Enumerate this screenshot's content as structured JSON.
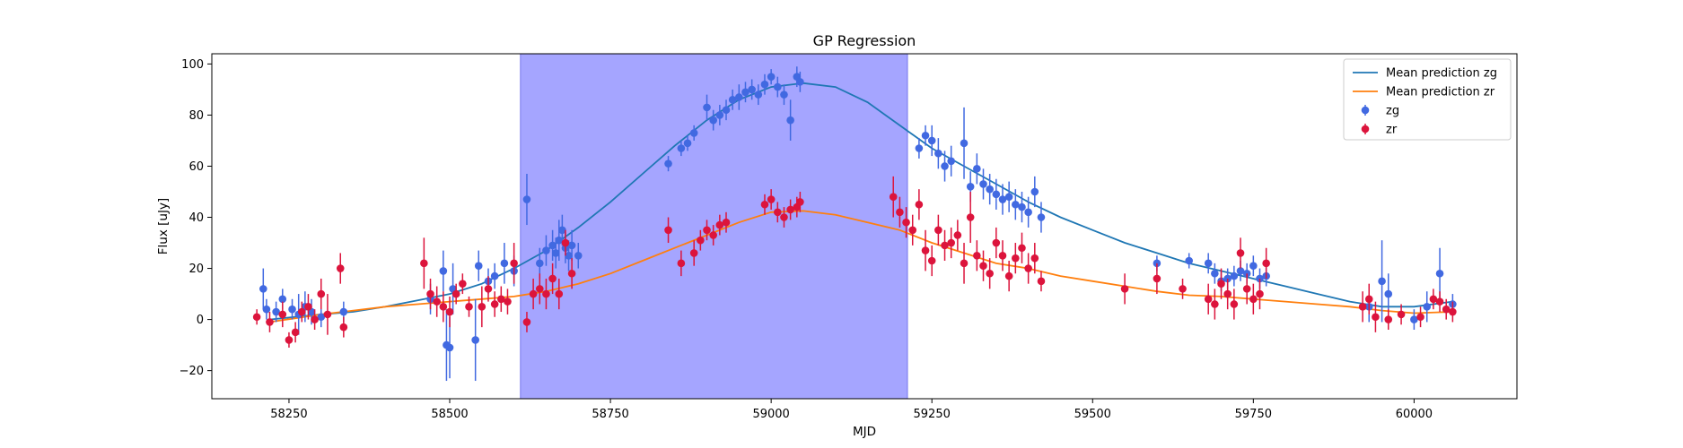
{
  "chart_data": {
    "type": "scatter",
    "title": "GP Regression",
    "xlabel": "MJD",
    "ylabel": "Flux [uJy]",
    "xlim": [
      58130,
      60160
    ],
    "ylim": [
      -31,
      104
    ],
    "xticks": [
      58250,
      58500,
      58750,
      59000,
      59250,
      59500,
      59750,
      60000
    ],
    "yticks": [
      -20,
      0,
      20,
      40,
      60,
      80,
      100
    ],
    "grid": false,
    "legend": "top-right",
    "shaded_region": {
      "x_start": 58610,
      "x_end": 59212,
      "color": "#a5a5ff"
    },
    "colors": {
      "mean_zg": "#1f77b4",
      "mean_zr": "#ff7f0e",
      "zg": "#4169e1",
      "zr": "#dc143c"
    },
    "series": [
      {
        "name": "Mean prediction zg",
        "kind": "line",
        "x": [
          58220,
          58260,
          58300,
          58350,
          58400,
          58450,
          58500,
          58550,
          58600,
          58650,
          58700,
          58750,
          58800,
          58850,
          58900,
          58950,
          59000,
          59050,
          59100,
          59150,
          59200,
          59250,
          59300,
          59350,
          59400,
          59450,
          59500,
          59550,
          59600,
          59650,
          59700,
          59750,
          59800,
          59850,
          59900,
          59950,
          60000,
          60060
        ],
        "y": [
          0,
          1,
          2,
          3,
          5,
          7.5,
          10,
          14,
          20,
          27,
          36,
          46,
          57,
          68,
          78,
          86,
          91,
          92.5,
          91,
          85,
          76,
          67,
          60,
          53,
          46,
          40,
          35,
          30,
          26,
          22,
          19,
          16,
          13,
          10,
          7,
          5,
          5,
          7
        ]
      },
      {
        "name": "Mean prediction zr",
        "kind": "line",
        "x": [
          58220,
          58260,
          58300,
          58350,
          58400,
          58450,
          58500,
          58550,
          58600,
          58650,
          58700,
          58750,
          58800,
          58850,
          58900,
          58950,
          59000,
          59050,
          59100,
          59150,
          59200,
          59250,
          59300,
          59350,
          59400,
          59450,
          59500,
          59550,
          59600,
          59650,
          59700,
          59750,
          59800,
          59850,
          59900,
          59950,
          60000,
          60060
        ],
        "y": [
          -1,
          0.5,
          2,
          3.5,
          5,
          6,
          7,
          8,
          9,
          11,
          14,
          18,
          23,
          28,
          33,
          38,
          42,
          42.5,
          41,
          38,
          35,
          30,
          26,
          22,
          20,
          17,
          15,
          13,
          11,
          9.5,
          9,
          8,
          7,
          6,
          5,
          3.5,
          2.5,
          3
        ]
      },
      {
        "name": "zg",
        "kind": "errorbar",
        "x": [
          58210,
          58215,
          58230,
          58240,
          58255,
          58265,
          58275,
          58285,
          58300,
          58335,
          58470,
          58490,
          58495,
          58500,
          58505,
          58540,
          58545,
          58560,
          58570,
          58585,
          58600,
          58620,
          58640,
          58650,
          58660,
          58665,
          58670,
          58675,
          58680,
          58685,
          58690,
          58700,
          58840,
          58860,
          58870,
          58880,
          58900,
          58910,
          58920,
          58930,
          58940,
          58950,
          58960,
          58970,
          58980,
          58990,
          59000,
          59010,
          59020,
          59030,
          59040,
          59045,
          59230,
          59240,
          59250,
          59260,
          59270,
          59280,
          59300,
          59310,
          59320,
          59330,
          59340,
          59350,
          59360,
          59370,
          59380,
          59390,
          59400,
          59410,
          59420,
          59600,
          59650,
          59680,
          59690,
          59700,
          59710,
          59720,
          59730,
          59740,
          59750,
          59760,
          59770,
          59930,
          59950,
          59960,
          60000,
          60020,
          60040,
          60060
        ],
        "y": [
          12,
          4,
          3,
          8,
          4,
          2,
          5,
          3,
          1,
          3,
          8,
          19,
          -10,
          -11,
          12,
          -8,
          21,
          15,
          17,
          22,
          19,
          47,
          22,
          27,
          29,
          26,
          31,
          35,
          28,
          25,
          29,
          25,
          61,
          67,
          69,
          73,
          83,
          78,
          80,
          82,
          86,
          87,
          89,
          90,
          88,
          92,
          95,
          91,
          88,
          78,
          95,
          93,
          67,
          72,
          70,
          65,
          60,
          62,
          69,
          52,
          59,
          53,
          51,
          49,
          47,
          48,
          45,
          44,
          42,
          50,
          40,
          22,
          23,
          22,
          18,
          15,
          16,
          17,
          19,
          18,
          21,
          16,
          17,
          5,
          15,
          10,
          0,
          5,
          18,
          6
        ],
        "yerr": [
          8,
          4,
          4,
          4,
          4,
          8,
          6,
          5,
          4,
          4,
          6,
          8,
          14,
          12,
          10,
          16,
          6,
          5,
          5,
          8,
          6,
          10,
          6,
          6,
          6,
          6,
          8,
          6,
          6,
          6,
          6,
          5,
          3,
          3,
          3,
          3,
          5,
          4,
          4,
          4,
          4,
          5,
          4,
          4,
          4,
          4,
          3,
          4,
          4,
          8,
          4,
          4,
          4,
          4,
          6,
          6,
          6,
          6,
          14,
          6,
          6,
          6,
          6,
          6,
          6,
          6,
          6,
          6,
          6,
          6,
          6,
          3,
          3,
          4,
          4,
          4,
          4,
          4,
          4,
          4,
          4,
          4,
          4,
          6,
          16,
          8,
          4,
          6,
          10,
          4
        ]
      },
      {
        "name": "zr",
        "kind": "errorbar",
        "x": [
          58200,
          58220,
          58240,
          58250,
          58260,
          58270,
          58280,
          58290,
          58300,
          58310,
          58330,
          58335,
          58460,
          58470,
          58480,
          58490,
          58500,
          58510,
          58520,
          58530,
          58550,
          58560,
          58570,
          58580,
          58590,
          58600,
          58620,
          58630,
          58640,
          58650,
          58660,
          58670,
          58680,
          58690,
          58840,
          58860,
          58880,
          58890,
          58900,
          58910,
          58920,
          58930,
          58990,
          59000,
          59010,
          59020,
          59030,
          59040,
          59045,
          59190,
          59200,
          59210,
          59220,
          59230,
          59240,
          59250,
          59260,
          59270,
          59280,
          59290,
          59300,
          59310,
          59320,
          59330,
          59340,
          59350,
          59360,
          59370,
          59380,
          59390,
          59400,
          59410,
          59420,
          59550,
          59600,
          59640,
          59680,
          59690,
          59700,
          59710,
          59720,
          59730,
          59740,
          59750,
          59760,
          59770,
          59920,
          59930,
          59940,
          59960,
          59980,
          60010,
          60030,
          60040,
          60050,
          60060
        ],
        "y": [
          1,
          -1,
          2,
          -8,
          -5,
          3,
          5,
          0,
          10,
          2,
          20,
          -3,
          22,
          10,
          7,
          5,
          3,
          10,
          14,
          5,
          5,
          12,
          6,
          8,
          7,
          22,
          -1,
          10,
          12,
          10,
          16,
          10,
          30,
          18,
          35,
          22,
          26,
          31,
          35,
          33,
          37,
          38,
          45,
          47,
          42,
          40,
          43,
          44,
          46,
          48,
          42,
          38,
          35,
          45,
          27,
          23,
          35,
          29,
          30,
          33,
          22,
          40,
          25,
          21,
          18,
          30,
          25,
          17,
          24,
          28,
          20,
          24,
          15,
          12,
          16,
          12,
          8,
          6,
          14,
          10,
          6,
          26,
          12,
          8,
          10,
          22,
          5,
          8,
          1,
          0,
          2,
          1,
          8,
          7,
          4,
          3
        ],
        "yerr": [
          3,
          4,
          5,
          3,
          4,
          4,
          5,
          4,
          6,
          8,
          6,
          4,
          10,
          6,
          6,
          6,
          6,
          4,
          4,
          4,
          8,
          5,
          5,
          5,
          5,
          8,
          4,
          6,
          6,
          6,
          6,
          6,
          5,
          6,
          5,
          5,
          5,
          4,
          4,
          4,
          4,
          4,
          4,
          4,
          4,
          4,
          4,
          4,
          4,
          8,
          6,
          6,
          6,
          6,
          8,
          6,
          6,
          6,
          6,
          6,
          8,
          10,
          6,
          6,
          6,
          6,
          6,
          6,
          6,
          6,
          6,
          6,
          4,
          6,
          6,
          4,
          6,
          6,
          6,
          6,
          6,
          6,
          6,
          6,
          6,
          6,
          6,
          6,
          6,
          4,
          4,
          4,
          4,
          4,
          4,
          4
        ]
      }
    ]
  }
}
